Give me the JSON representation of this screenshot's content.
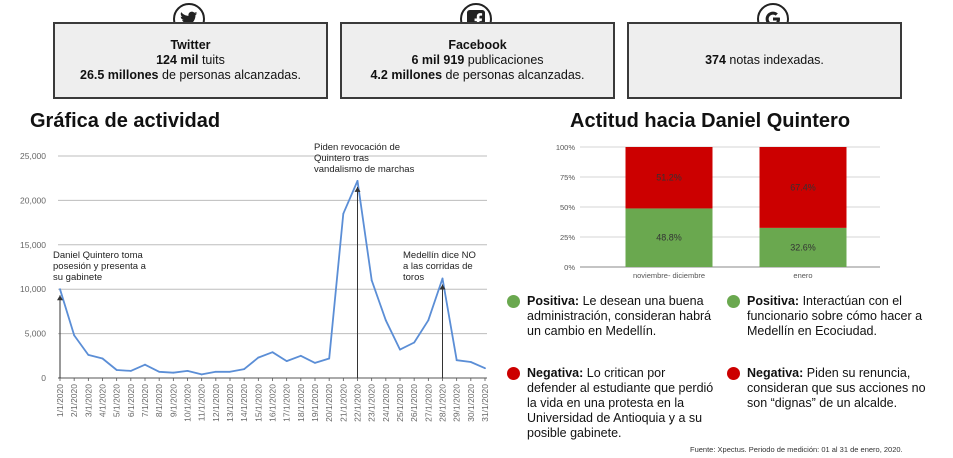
{
  "boxes": {
    "twitter": {
      "title": "Twitter",
      "line1_value": "124 mil",
      "line1_text": " tuits",
      "line2_value": "26.5 millones",
      "line2_text": " de personas alcanzadas."
    },
    "facebook": {
      "title": "Facebook",
      "line1_value": "6 mil 919",
      "line1_text": " publicaciones",
      "line2_value": "4.2 millones",
      "line2_text": " de personas alcanzadas."
    },
    "google": {
      "line1_value": "374",
      "line1_text": " notas indexadas."
    }
  },
  "icons": {
    "twitter": "twitter-bird-icon",
    "facebook": "facebook-f-icon",
    "google": "google-g-icon"
  },
  "titles": {
    "activity": "Gráfica de actividad",
    "attitude": "Actitud hacia Daniel Quintero"
  },
  "colors": {
    "line": "#5b8ed6",
    "positive": "#6aa84f",
    "negative": "#cc0000"
  },
  "chart_data": [
    {
      "type": "line",
      "title": "Gráfica de actividad",
      "xlabel": "",
      "ylabel": "",
      "ylim": [
        0,
        25000
      ],
      "yticks": [
        0,
        5000,
        10000,
        15000,
        20000,
        25000
      ],
      "ytick_labels": [
        "0",
        "5,000",
        "10,000",
        "15,000",
        "20,000",
        "25,000"
      ],
      "grid": true,
      "x": [
        "1/1/2020",
        "2/1/2020",
        "3/1/2020",
        "4/1/2020",
        "5/1/2020",
        "6/1/2020",
        "7/1/2020",
        "8/1/2020",
        "9/1/2020",
        "10/1/2020",
        "11/1/2020",
        "12/1/2020",
        "13/1/2020",
        "14/1/2020",
        "15/1/2020",
        "16/1/2020",
        "17/1/2020",
        "18/1/2020",
        "19/1/2020",
        "20/1/2020",
        "21/1/2020",
        "22/1/2020",
        "23/1/2020",
        "24/1/2020",
        "25/1/2020",
        "26/1/2020",
        "27/1/2020",
        "28/1/2020",
        "29/1/2020",
        "30/1/2020",
        "31/1/2020"
      ],
      "series": [
        {
          "values": [
            10000,
            4800,
            2600,
            2200,
            900,
            800,
            1500,
            700,
            600,
            800,
            400,
            700,
            700,
            1000,
            2300,
            2900,
            1900,
            2500,
            1700,
            2200,
            18500,
            22200,
            11000,
            6500,
            3200,
            4000,
            6500,
            11200,
            2000,
            1800,
            1100
          ]
        }
      ],
      "annotations": [
        {
          "x": "1/1/2020",
          "text": [
            "Daniel Quintero toma",
            "posesión y presenta a",
            "su gabinete"
          ]
        },
        {
          "x": "22/1/2020",
          "text": [
            "Piden revocación de",
            "Quintero tras",
            "vandalismo de marchas"
          ]
        },
        {
          "x": "28/1/2020",
          "text": [
            "Medellín dice NO",
            "a las corridas de",
            "toros"
          ]
        }
      ]
    },
    {
      "type": "bar",
      "stacked": true,
      "title": "Actitud hacia Daniel Quintero",
      "categories": [
        "noviembre- diciembre",
        "enero"
      ],
      "ylim": [
        0,
        100
      ],
      "yticks": [
        "0%",
        "25%",
        "50%",
        "75%",
        "100%"
      ],
      "series": [
        {
          "name": "Positiva",
          "values": [
            48.8,
            32.6
          ],
          "labels": [
            "48.8%",
            "32.6%"
          ]
        },
        {
          "name": "Negativa",
          "values": [
            51.2,
            67.4
          ],
          "labels": [
            "51.2%",
            "67.4%"
          ]
        }
      ]
    }
  ],
  "legend": [
    {
      "label": "Positiva:",
      "text": " Le desean una buena administración, consideran habrá un cambio en Medellín."
    },
    {
      "label": "Positiva:",
      "text": " Interactúan con el funcionario sobre cómo hacer a Medellín en Ecociudad."
    },
    {
      "label": "Negativa:",
      "text": " Lo critican por defender al estudiante que perdió la vida en una protesta en la Universidad de Antioquia y a su posible gabinete."
    },
    {
      "label": "Negativa:",
      "text": " Piden su renuncia, consideran que sus acciones no son “dignas” de un alcalde."
    }
  ],
  "source": "Fuente: Xpectus. Periodo de medición:  01 al 31 de enero, 2020."
}
